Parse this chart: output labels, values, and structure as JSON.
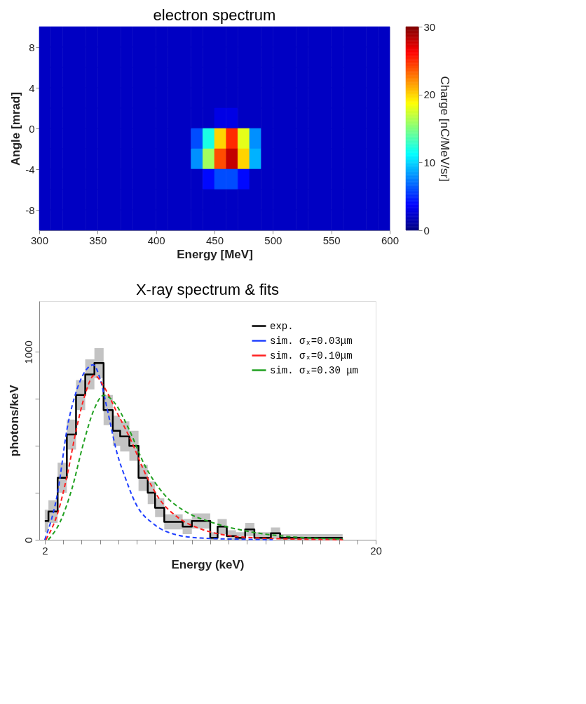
{
  "chart_data": [
    {
      "type": "heatmap",
      "title": "electron spectrum",
      "xlabel": "Energy [MeV]",
      "ylabel": "Angle [mrad]",
      "clabel": "Charge [nC/MeV/sr]",
      "x": [
        305,
        315,
        325,
        335,
        345,
        355,
        365,
        375,
        385,
        395,
        405,
        415,
        425,
        435,
        445,
        455,
        465,
        475,
        485,
        495,
        505,
        515,
        525,
        535,
        545,
        555,
        565,
        575,
        585,
        595
      ],
      "y": [
        9,
        7,
        5,
        3,
        1,
        -1,
        -3,
        -5,
        -7,
        -9
      ],
      "cells": [
        [
          2,
          2,
          2,
          2,
          2,
          2,
          2,
          2,
          2,
          2,
          2,
          2,
          2,
          2,
          2,
          2,
          2,
          2,
          2,
          2,
          2,
          2,
          2,
          2,
          2,
          2,
          2,
          2,
          2,
          2
        ],
        [
          2,
          2,
          2,
          2,
          2,
          2,
          2,
          2,
          2,
          2,
          2,
          2,
          2,
          2,
          2,
          2,
          2,
          2,
          2,
          2,
          2,
          2,
          2,
          2,
          2,
          2,
          2,
          2,
          2,
          2
        ],
        [
          2,
          2,
          2,
          2,
          2,
          2,
          2,
          2,
          2,
          2,
          2,
          2,
          2,
          2,
          2,
          2,
          2,
          2,
          2,
          2,
          2,
          2,
          2,
          2,
          2,
          2,
          2,
          2,
          2,
          2
        ],
        [
          2,
          2,
          2,
          2,
          2,
          2,
          2,
          2,
          2,
          2,
          2,
          2,
          2,
          2,
          2,
          2,
          2,
          2,
          2,
          2,
          2,
          2,
          2,
          2,
          2,
          2,
          2,
          2,
          2,
          2
        ],
        [
          2,
          2,
          2,
          2,
          2,
          2,
          2,
          2,
          2,
          2,
          2,
          2,
          2,
          2,
          2,
          3,
          3,
          2,
          2,
          2,
          2,
          2,
          2,
          2,
          2,
          2,
          2,
          2,
          2,
          2
        ],
        [
          2,
          2,
          2,
          2,
          2,
          2,
          2,
          2,
          2,
          2,
          2,
          2,
          2,
          6,
          12,
          20,
          25,
          18,
          8,
          2,
          2,
          2,
          2,
          2,
          2,
          2,
          2,
          2,
          2,
          2
        ],
        [
          2,
          2,
          2,
          2,
          2,
          2,
          2,
          2,
          2,
          2,
          2,
          2,
          2,
          8,
          16,
          24,
          28,
          20,
          9,
          2,
          2,
          2,
          2,
          2,
          2,
          2,
          2,
          2,
          2,
          2
        ],
        [
          2,
          2,
          2,
          2,
          2,
          2,
          2,
          2,
          2,
          2,
          2,
          2,
          2,
          2,
          4,
          6,
          6,
          4,
          2,
          2,
          2,
          2,
          2,
          2,
          2,
          2,
          2,
          2,
          2,
          2
        ],
        [
          2,
          2,
          2,
          2,
          2,
          2,
          2,
          2,
          2,
          2,
          2,
          2,
          2,
          2,
          2,
          2,
          2,
          2,
          2,
          2,
          2,
          2,
          2,
          2,
          2,
          2,
          2,
          2,
          2,
          2
        ],
        [
          2,
          2,
          2,
          2,
          2,
          2,
          2,
          2,
          2,
          2,
          2,
          2,
          2,
          2,
          2,
          2,
          2,
          2,
          2,
          2,
          2,
          2,
          2,
          2,
          2,
          2,
          2,
          2,
          2,
          2
        ]
      ],
      "xlim": [
        300,
        600
      ],
      "xticks": [
        300,
        350,
        400,
        450,
        500,
        550,
        600
      ],
      "ylim": [
        -10,
        10
      ],
      "yticks": [
        -8,
        -4,
        0,
        4,
        8
      ],
      "clim": [
        0,
        30
      ],
      "cticks": [
        0,
        10,
        20,
        30
      ]
    },
    {
      "type": "line",
      "title": "X-ray spectrum & fits",
      "xlabel": "Energy (keV)",
      "ylabel": "photons/keV",
      "xlim": [
        1.7,
        20
      ],
      "xticks": [
        2,
        {
          "value": 3,
          "label": null
        },
        {
          "value": 4,
          "label": null
        },
        {
          "value": 5,
          "label": null
        },
        {
          "value": 6,
          "label": null
        },
        {
          "value": 7,
          "label": null
        },
        {
          "value": 8,
          "label": null
        },
        {
          "value": 9,
          "label": null
        },
        {
          "value": 10,
          "label": null
        },
        {
          "value": 11,
          "label": null
        },
        {
          "value": 12,
          "label": null
        },
        {
          "value": 13,
          "label": null
        },
        {
          "value": 14,
          "label": null
        },
        {
          "value": 15,
          "label": null
        },
        {
          "value": 16,
          "label": null
        },
        {
          "value": 17,
          "label": null
        },
        {
          "value": 18,
          "label": null
        },
        {
          "value": 19,
          "label": null
        },
        20
      ],
      "ylim": [
        0,
        1270
      ],
      "yticks": [
        0,
        {
          "value": 250,
          "label": null
        },
        {
          "value": 500,
          "label": null
        },
        {
          "value": 750,
          "label": null
        },
        {
          "value": 1000,
          "label": "1000"
        }
      ],
      "legend": "top right",
      "grid": false,
      "series": [
        {
          "name": "exp.",
          "type": "step",
          "color": "#000000",
          "line_style": "solid",
          "x": [
            2.0,
            2.2,
            2.7,
            3.2,
            3.7,
            4.2,
            4.7,
            5.2,
            5.7,
            6.1,
            6.6,
            7.1,
            7.6,
            8.0,
            8.5,
            9.5,
            10.0,
            11.0,
            11.4,
            11.9,
            12.4,
            12.9,
            13.4,
            14.3,
            14.8,
            18.2
          ],
          "values": [
            100,
            150,
            330,
            560,
            770,
            880,
            940,
            690,
            580,
            550,
            500,
            330,
            250,
            170,
            95,
            70,
            100,
            10,
            70,
            20,
            10,
            55,
            10,
            35,
            10,
            10
          ],
          "lower": [
            40,
            90,
            250,
            480,
            690,
            800,
            860,
            610,
            500,
            470,
            420,
            260,
            190,
            120,
            55,
            30,
            60,
            0,
            30,
            0,
            0,
            20,
            0,
            5,
            0,
            0
          ],
          "upper": [
            160,
            210,
            410,
            640,
            850,
            960,
            1020,
            770,
            660,
            630,
            580,
            400,
            310,
            220,
            135,
            110,
            140,
            40,
            110,
            50,
            40,
            90,
            40,
            65,
            30,
            30
          ]
        },
        {
          "name": "sim. σₓ=0.03μm",
          "type": "line",
          "color": "#2040ff",
          "line_style": "dashed",
          "x": [
            2.0,
            2.71,
            3.22,
            3.73,
            4.18,
            4.63,
            5.01,
            5.4,
            5.91,
            6.42,
            6.94,
            7.96,
            8.99,
            10.5,
            14.4
          ],
          "values": [
            0,
            256,
            594,
            794,
            894,
            931,
            856,
            694,
            469,
            319,
            194,
            81,
            31,
            9,
            0
          ]
        },
        {
          "name": "sim. σₓ=0.10μm",
          "type": "line",
          "color": "#ff2020",
          "line_style": "dashed",
          "x": [
            2.06,
            2.71,
            3.22,
            3.73,
            4.18,
            4.69,
            5.27,
            5.91,
            6.68,
            7.45,
            8.22,
            9.24,
            10.53,
            11.81,
            13.73,
            18.22
          ],
          "values": [
            0,
            144,
            344,
            594,
            769,
            875,
            806,
            681,
            531,
            356,
            219,
            119,
            56,
            25,
            9,
            0
          ]
        },
        {
          "name": "sim. σₓ=0.30 μm",
          "type": "line",
          "color": "#20a020",
          "line_style": "dashed",
          "x": [
            2.19,
            2.83,
            3.47,
            4.12,
            4.63,
            5.21,
            5.78,
            6.55,
            7.45,
            8.47,
            9.76,
            11.04,
            13.09,
            15.01,
            18.22
          ],
          "values": [
            0,
            94,
            269,
            519,
            681,
            769,
            731,
            594,
            394,
            244,
            144,
            94,
            44,
            19,
            4
          ]
        }
      ]
    }
  ]
}
